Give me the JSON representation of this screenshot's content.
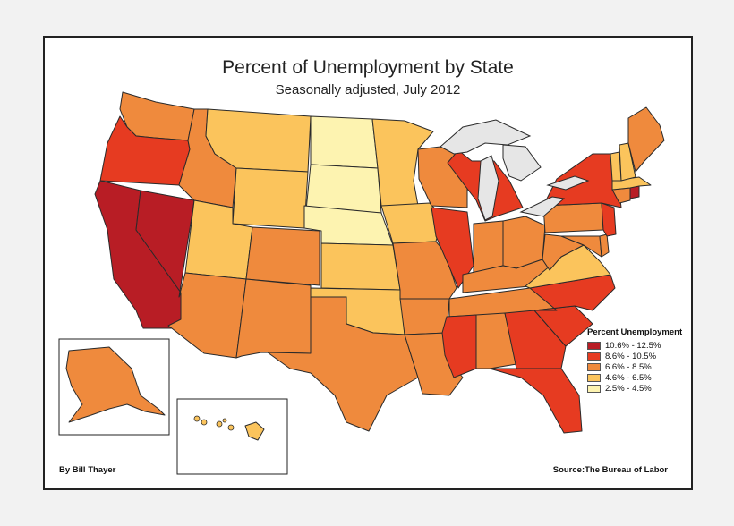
{
  "map": {
    "title": "Percent of Unemployment by State",
    "subtitle": "Seasonally adjusted, July 2012",
    "credit": "By Bill Thayer",
    "source": "Source:The Bureau of Labor"
  },
  "legend": {
    "title": "Percent Unemployment",
    "items": [
      {
        "label": "10.6% - 12.5%",
        "color": "#b81d25"
      },
      {
        "label": "8.6% - 10.5%",
        "color": "#e63b21"
      },
      {
        "label": "6.6% - 8.5%",
        "color": "#ef8a3d"
      },
      {
        "label": "4.6% - 6.5%",
        "color": "#fbc45c"
      },
      {
        "label": "2.5% - 4.5%",
        "color": "#fdf3b0"
      }
    ]
  },
  "colors": {
    "lakes": "#e6e6e6",
    "border": "#2a2a2a"
  },
  "regions": [
    {
      "name": "washington",
      "class": 3
    },
    {
      "name": "oregon",
      "class": 2
    },
    {
      "name": "california",
      "class": 1
    },
    {
      "name": "nevada",
      "class": 1
    },
    {
      "name": "idaho",
      "class": 3
    },
    {
      "name": "montana",
      "class": 4
    },
    {
      "name": "wyoming",
      "class": 4
    },
    {
      "name": "utah",
      "class": 4
    },
    {
      "name": "arizona",
      "class": 3
    },
    {
      "name": "colorado",
      "class": 3
    },
    {
      "name": "new-mexico",
      "class": 3
    },
    {
      "name": "north-dakota",
      "class": 5
    },
    {
      "name": "south-dakota",
      "class": 5
    },
    {
      "name": "nebraska",
      "class": 5
    },
    {
      "name": "kansas",
      "class": 4
    },
    {
      "name": "oklahoma",
      "class": 4
    },
    {
      "name": "texas",
      "class": 3
    },
    {
      "name": "minnesota",
      "class": 4
    },
    {
      "name": "iowa",
      "class": 4
    },
    {
      "name": "missouri",
      "class": 3
    },
    {
      "name": "arkansas",
      "class": 3
    },
    {
      "name": "louisiana",
      "class": 3
    },
    {
      "name": "wisconsin",
      "class": 3
    },
    {
      "name": "illinois",
      "class": 2
    },
    {
      "name": "michigan",
      "class": 2
    },
    {
      "name": "indiana",
      "class": 3
    },
    {
      "name": "ohio",
      "class": 3
    },
    {
      "name": "kentucky",
      "class": 3
    },
    {
      "name": "tennessee",
      "class": 3
    },
    {
      "name": "mississippi",
      "class": 2
    },
    {
      "name": "alabama",
      "class": 3
    },
    {
      "name": "georgia",
      "class": 2
    },
    {
      "name": "florida",
      "class": 2
    },
    {
      "name": "south-carolina",
      "class": 2
    },
    {
      "name": "north-carolina",
      "class": 2
    },
    {
      "name": "virginia",
      "class": 4
    },
    {
      "name": "west-virginia",
      "class": 3
    },
    {
      "name": "maryland",
      "class": 3
    },
    {
      "name": "delaware",
      "class": 3
    },
    {
      "name": "pennsylvania",
      "class": 3
    },
    {
      "name": "new-jersey",
      "class": 2
    },
    {
      "name": "new-york",
      "class": 2
    },
    {
      "name": "connecticut",
      "class": 3
    },
    {
      "name": "rhode-island",
      "class": 1
    },
    {
      "name": "massachusetts",
      "class": 4
    },
    {
      "name": "vermont",
      "class": 4
    },
    {
      "name": "new-hampshire",
      "class": 4
    },
    {
      "name": "maine",
      "class": 3
    },
    {
      "name": "alaska",
      "class": 3
    },
    {
      "name": "hawaii",
      "class": 4
    }
  ]
}
